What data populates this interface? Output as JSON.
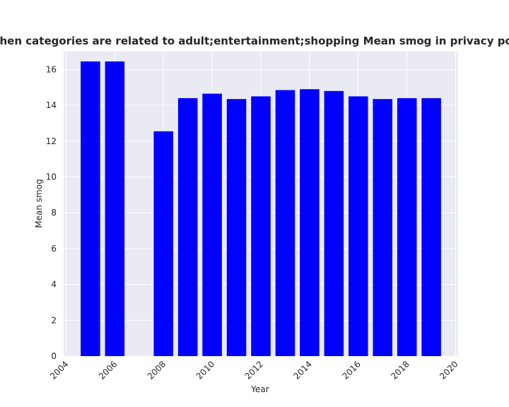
{
  "chart_data": {
    "type": "bar",
    "title": "Mean smog when categories are related to adult;entertainment;shopping Mean smog in privacy policies by Year",
    "xlabel": "Year",
    "ylabel": "Mean smog",
    "x": [
      2005,
      2006,
      2008,
      2009,
      2010,
      2011,
      2012,
      2013,
      2014,
      2015,
      2016,
      2017,
      2018,
      2019
    ],
    "values": [
      16.45,
      16.45,
      12.55,
      14.4,
      14.65,
      14.35,
      14.5,
      14.85,
      14.9,
      14.8,
      14.5,
      14.35,
      14.4,
      14.4
    ],
    "xlim": [
      2003.9,
      2020.1
    ],
    "ylim": [
      0,
      17
    ],
    "xticks": [
      2004,
      2006,
      2008,
      2010,
      2012,
      2014,
      2016,
      2018,
      2020
    ],
    "yticks": [
      0,
      2,
      4,
      6,
      8,
      10,
      12,
      14,
      16
    ],
    "bar_color": "#0000ff",
    "plot_background": "#eaeaf2",
    "grid": true,
    "legend": false
  }
}
